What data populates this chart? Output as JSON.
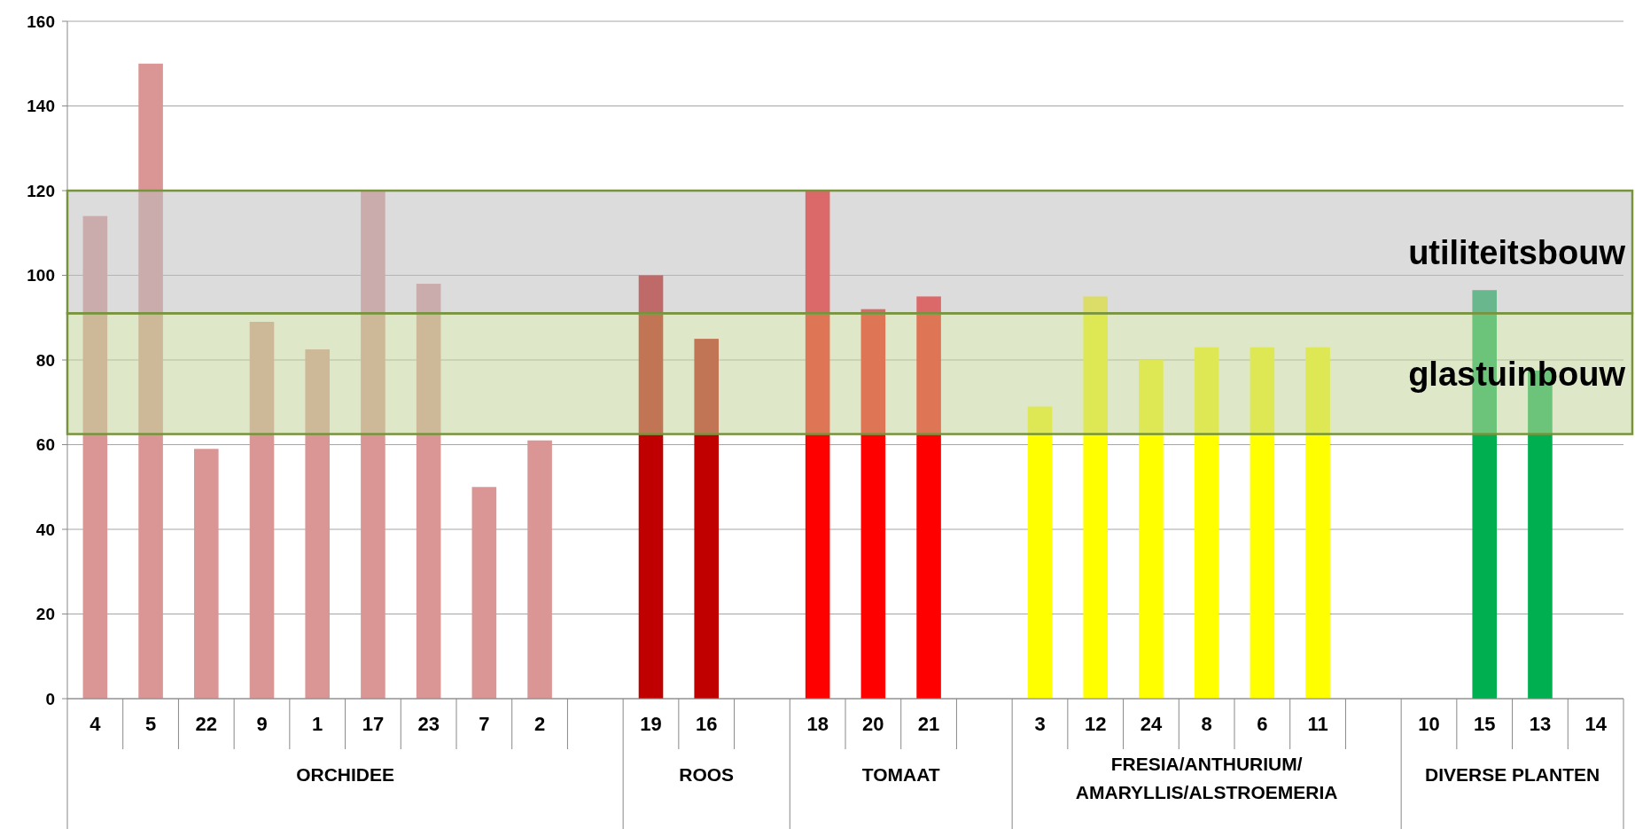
{
  "chart_data": {
    "type": "bar",
    "categories": [
      "4",
      "5",
      "22",
      "9",
      "1",
      "17",
      "23",
      "7",
      "2",
      null,
      "19",
      "16",
      null,
      "18",
      "20",
      "21",
      null,
      "3",
      "12",
      "24",
      "8",
      "6",
      "11",
      null,
      "10",
      "15",
      "13",
      "14"
    ],
    "values": [
      114,
      150,
      59,
      89,
      82.5,
      120,
      98,
      50,
      61,
      null,
      100,
      85,
      null,
      120,
      92,
      95,
      null,
      69,
      95,
      80,
      83,
      83,
      83,
      null,
      null,
      96.5,
      77.5,
      null
    ],
    "colors": [
      "#da9694",
      "#da9694",
      "#da9694",
      "#da9694",
      "#da9694",
      "#da9694",
      "#da9694",
      "#da9694",
      "#da9694",
      null,
      "#c00000",
      "#c00000",
      null,
      "#ff0000",
      "#ff0000",
      "#ff0000",
      null,
      "#ffff00",
      "#ffff00",
      "#ffff00",
      "#ffff00",
      "#ffff00",
      "#ffff00",
      null,
      null,
      "#00b050",
      "#00b050",
      null
    ],
    "ylim": [
      0,
      160
    ],
    "yticks": [
      0,
      20,
      40,
      60,
      80,
      100,
      120,
      140,
      160
    ],
    "grid": "y",
    "bands": [
      {
        "axis": "y",
        "from": 91,
        "to": 120,
        "label": "utiliteitsbouw",
        "color": "#bfbfbf"
      },
      {
        "axis": "y",
        "from": 62.5,
        "to": 91,
        "label": "glastuinbouw",
        "color": "#c3d69b"
      }
    ],
    "annotations": [
      "ORCHIDEE",
      "ROOS",
      "TOMAAT",
      "FRESIA/ANTHURIUM/ AMARYLLIS/ALSTROEMERIA",
      "DIVERSE PLANTEN"
    ]
  }
}
